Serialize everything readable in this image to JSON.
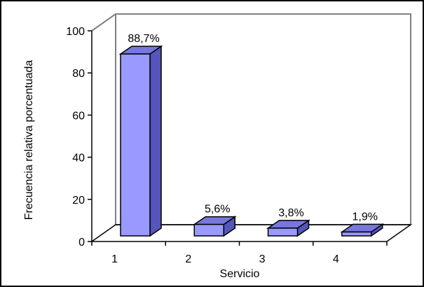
{
  "chart_data": {
    "type": "bar",
    "style": "3d",
    "categories": [
      "1",
      "2",
      "3",
      "4"
    ],
    "values": [
      88.7,
      5.6,
      3.8,
      1.9
    ],
    "data_labels": [
      "88,7%",
      "5,6%",
      "3,8%",
      "1,9%"
    ],
    "xlabel": "Servicio",
    "ylabel": "Frecuencia  relativa  porcentuada",
    "ylim": [
      0,
      100
    ],
    "yticks": [
      0,
      20,
      40,
      60,
      80,
      100
    ],
    "grid": false,
    "legend": "none",
    "colors": {
      "bar_front": "#9999FF",
      "bar_side": "#5555BB",
      "bar_top": "#7777DD",
      "outline": "#000000",
      "wall": "#808080"
    }
  }
}
